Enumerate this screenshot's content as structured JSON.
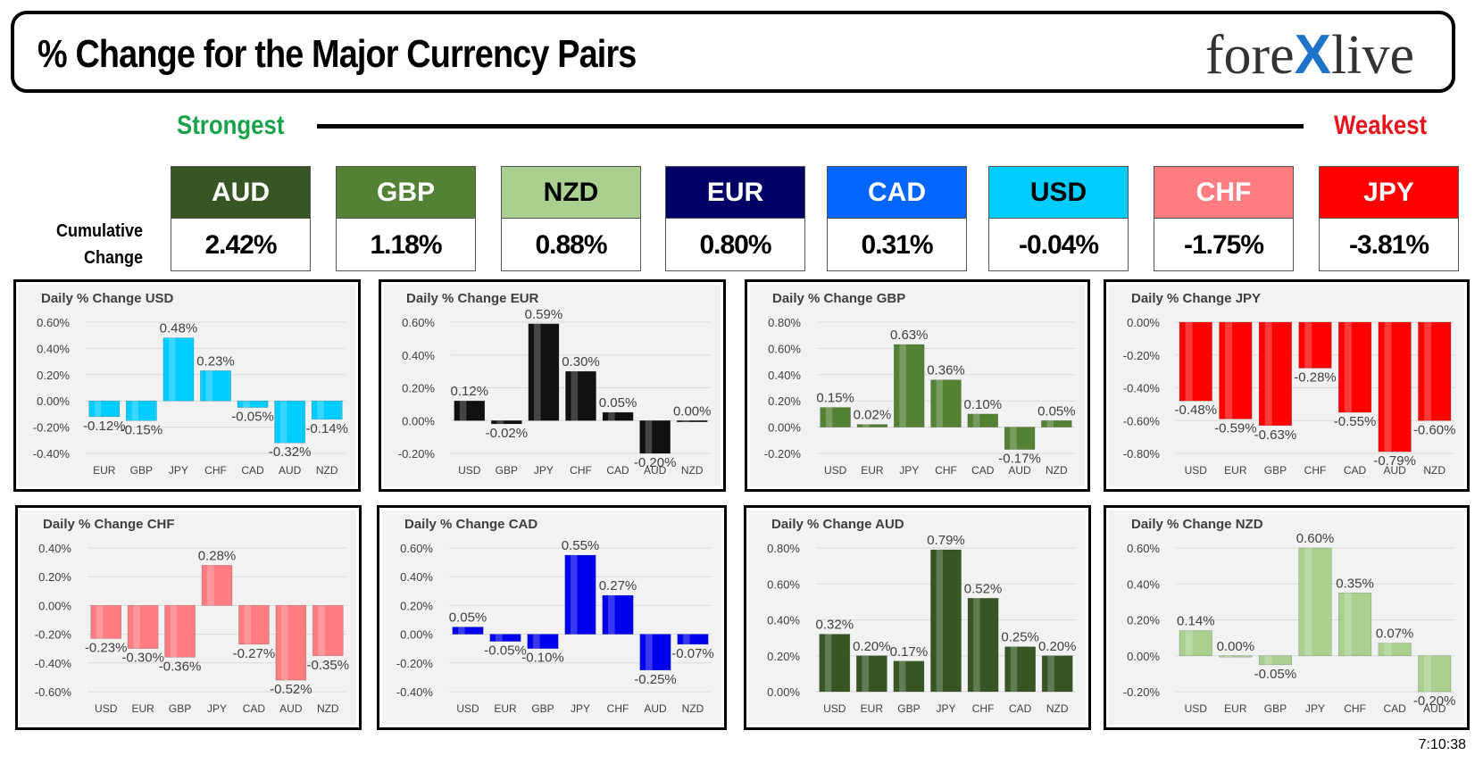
{
  "header": {
    "title": "% Change for the Major Currency Pairs",
    "logo_left": "fore",
    "logo_x": "X",
    "logo_right": "live"
  },
  "scale": {
    "strongest": "Strongest",
    "weakest": "Weakest"
  },
  "cumulative_label_1": "Cumulative",
  "cumulative_label_2": "Change",
  "currencies": [
    {
      "code": "AUD",
      "value": "2.42%",
      "color": "#375623",
      "text": "#ffffff"
    },
    {
      "code": "GBP",
      "value": "1.18%",
      "color": "#548235",
      "text": "#ffffff"
    },
    {
      "code": "NZD",
      "value": "0.88%",
      "color": "#a9d08e",
      "text": "#000000"
    },
    {
      "code": "EUR",
      "value": "0.80%",
      "color": "#000066",
      "text": "#ffffff"
    },
    {
      "code": "CAD",
      "value": "0.31%",
      "color": "#0066ff",
      "text": "#ffffff"
    },
    {
      "code": "USD",
      "value": "-0.04%",
      "color": "#00ccff",
      "text": "#000000"
    },
    {
      "code": "CHF",
      "value": "-1.75%",
      "color": "#ff7c80",
      "text": "#ffffff"
    },
    {
      "code": "JPY",
      "value": "-3.81%",
      "color": "#ff0000",
      "text": "#ffffff"
    }
  ],
  "timestamp": "7:10:38",
  "chart_data": [
    {
      "type": "bar",
      "title": "Daily % Change USD",
      "categories": [
        "EUR",
        "GBP",
        "JPY",
        "CHF",
        "CAD",
        "AUD",
        "NZD"
      ],
      "values": [
        -0.12,
        -0.15,
        0.48,
        0.23,
        -0.05,
        -0.32,
        -0.14
      ],
      "ylim": [
        -0.4,
        0.6
      ],
      "ticks": [
        0.6,
        0.4,
        0.2,
        0.0,
        -0.2,
        -0.4
      ],
      "tick_labels": [
        "0.60%",
        "0.40%",
        "0.20%",
        "0.00%",
        "-0.20%",
        "-0.40%"
      ],
      "data_labels": [
        "-0.12%",
        "-0.15%",
        "0.48%",
        "0.23%",
        "-0.05%",
        "-0.32%",
        "-0.14%"
      ],
      "color": "#00ccff"
    },
    {
      "type": "bar",
      "title": "Daily % Change EUR",
      "categories": [
        "USD",
        "GBP",
        "JPY",
        "CHF",
        "CAD",
        "AUD",
        "NZD"
      ],
      "values": [
        0.12,
        -0.02,
        0.59,
        0.3,
        0.05,
        -0.2,
        0.0
      ],
      "ylim": [
        -0.2,
        0.6
      ],
      "ticks": [
        0.6,
        0.4,
        0.2,
        0.0,
        -0.2
      ],
      "tick_labels": [
        "0.60%",
        "0.40%",
        "0.20%",
        "0.00%",
        "-0.20%"
      ],
      "data_labels": [
        "0.12%",
        "-0.02%",
        "0.59%",
        "0.30%",
        "0.05%",
        "-0.20%",
        "0.00%"
      ],
      "color": "#111111"
    },
    {
      "type": "bar",
      "title": "Daily % Change GBP",
      "categories": [
        "USD",
        "EUR",
        "JPY",
        "CHF",
        "CAD",
        "AUD",
        "NZD"
      ],
      "values": [
        0.15,
        0.02,
        0.63,
        0.36,
        0.1,
        -0.17,
        0.05
      ],
      "ylim": [
        -0.2,
        0.8
      ],
      "ticks": [
        0.8,
        0.6,
        0.4,
        0.2,
        0.0,
        -0.2
      ],
      "tick_labels": [
        "0.80%",
        "0.60%",
        "0.40%",
        "0.20%",
        "0.00%",
        "-0.20%"
      ],
      "data_labels": [
        "0.15%",
        "0.02%",
        "0.63%",
        "0.36%",
        "0.10%",
        "-0.17%",
        "0.05%"
      ],
      "color": "#548235"
    },
    {
      "type": "bar",
      "title": "Daily % Change JPY",
      "categories": [
        "USD",
        "EUR",
        "GBP",
        "CHF",
        "CAD",
        "AUD",
        "NZD"
      ],
      "values": [
        -0.48,
        -0.59,
        -0.63,
        -0.28,
        -0.55,
        -0.79,
        -0.6
      ],
      "ylim": [
        -0.8,
        0.0
      ],
      "ticks": [
        0.0,
        -0.2,
        -0.4,
        -0.6,
        -0.8
      ],
      "tick_labels": [
        "0.00%",
        "-0.20%",
        "-0.40%",
        "-0.60%",
        "-0.80%"
      ],
      "data_labels": [
        "-0.48%",
        "-0.59%",
        "-0.63%",
        "-0.28%",
        "-0.55%",
        "-0.79%",
        "-0.60%"
      ],
      "color": "#ff0000"
    },
    {
      "type": "bar",
      "title": "Daily % Change CHF",
      "categories": [
        "USD",
        "EUR",
        "GBP",
        "JPY",
        "CAD",
        "AUD",
        "NZD"
      ],
      "values": [
        -0.23,
        -0.3,
        -0.36,
        0.28,
        -0.27,
        -0.52,
        -0.35
      ],
      "ylim": [
        -0.6,
        0.4
      ],
      "ticks": [
        0.4,
        0.2,
        0.0,
        -0.2,
        -0.4,
        -0.6
      ],
      "tick_labels": [
        "0.40%",
        "0.20%",
        "0.00%",
        "-0.20%",
        "-0.40%",
        "-0.60%"
      ],
      "data_labels": [
        "-0.23%",
        "-0.30%",
        "-0.36%",
        "0.28%",
        "-0.27%",
        "-0.52%",
        "-0.35%"
      ],
      "color": "#ff7c80"
    },
    {
      "type": "bar",
      "title": "Daily % Change CAD",
      "categories": [
        "USD",
        "EUR",
        "GBP",
        "JPY",
        "CHF",
        "AUD",
        "NZD"
      ],
      "values": [
        0.05,
        -0.05,
        -0.1,
        0.55,
        0.27,
        -0.25,
        -0.07
      ],
      "ylim": [
        -0.4,
        0.6
      ],
      "ticks": [
        0.6,
        0.4,
        0.2,
        0.0,
        -0.2,
        -0.4
      ],
      "tick_labels": [
        "0.60%",
        "0.40%",
        "0.20%",
        "0.00%",
        "-0.20%",
        "-0.40%"
      ],
      "data_labels": [
        "0.05%",
        "-0.05%",
        "-0.10%",
        "0.55%",
        "0.27%",
        "-0.25%",
        "-0.07%"
      ],
      "color": "#0000ee"
    },
    {
      "type": "bar",
      "title": "Daily % Change AUD",
      "categories": [
        "USD",
        "EUR",
        "GBP",
        "JPY",
        "CHF",
        "CAD",
        "NZD"
      ],
      "values": [
        0.32,
        0.2,
        0.17,
        0.79,
        0.52,
        0.25,
        0.2
      ],
      "ylim": [
        0.0,
        0.8
      ],
      "ticks": [
        0.8,
        0.6,
        0.4,
        0.2,
        0.0
      ],
      "tick_labels": [
        "0.80%",
        "0.60%",
        "0.40%",
        "0.20%",
        "0.00%"
      ],
      "data_labels": [
        "0.32%",
        "0.20%",
        "0.17%",
        "0.79%",
        "0.52%",
        "0.25%",
        "0.20%"
      ],
      "color": "#375623"
    },
    {
      "type": "bar",
      "title": "Daily % Change NZD",
      "categories": [
        "USD",
        "EUR",
        "GBP",
        "JPY",
        "CHF",
        "CAD",
        "AUD"
      ],
      "values": [
        0.14,
        0.0,
        -0.05,
        0.6,
        0.35,
        0.07,
        -0.2
      ],
      "ylim": [
        -0.2,
        0.6
      ],
      "ticks": [
        0.6,
        0.4,
        0.2,
        0.0,
        -0.2
      ],
      "tick_labels": [
        "0.60%",
        "0.40%",
        "0.20%",
        "0.00%",
        "-0.20%"
      ],
      "data_labels": [
        "0.14%",
        "0.00%",
        "-0.05%",
        "0.60%",
        "0.35%",
        "0.07%",
        "-0.20%"
      ],
      "color": "#a9d08e"
    }
  ]
}
